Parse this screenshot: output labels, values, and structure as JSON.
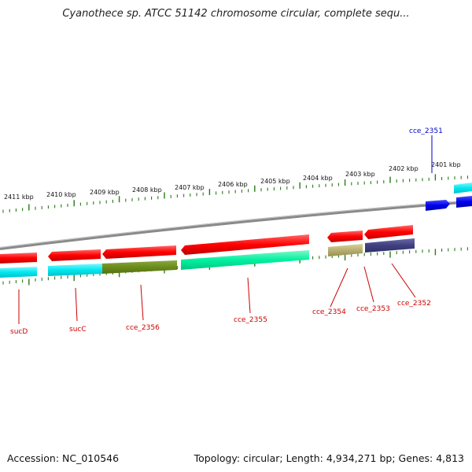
{
  "title": "Cyanothece sp. ATCC 51142 chromosome circular, complete sequ...",
  "footer": {
    "accession": "Accession: NC_010546",
    "summary": "Topology: circular; Length: 4,934,271 bp; Genes: 4,813"
  },
  "colors": {
    "backbone": "#8a8a8a",
    "tick": "#2a7a1a",
    "forward_gene": "#ff0000",
    "reverse_gene": "#0000ee",
    "label_red": "#cc0000",
    "label_blue": "#0000cc",
    "cds_cyan": "#00e8f0",
    "cds_olive": "#6b8c1c",
    "cds_green": "#00f0a0",
    "cds_khaki": "#b8b070",
    "cds_navy": "#404080"
  },
  "scale_labels": [
    "2411 kbp",
    "2410 kbp",
    "2409 kbp",
    "2408 kbp",
    "2407 kbp",
    "2406 kbp",
    "2405 kbp",
    "2404 kbp",
    "2403 kbp",
    "2402 kbp",
    "2401 kbp"
  ],
  "genes": [
    {
      "name": "sucD",
      "strand": "reverse",
      "color": "label_red"
    },
    {
      "name": "sucC",
      "strand": "reverse",
      "color": "label_red"
    },
    {
      "name": "cce_2356",
      "strand": "reverse",
      "color": "label_red"
    },
    {
      "name": "cce_2355",
      "strand": "reverse",
      "color": "label_red"
    },
    {
      "name": "cce_2354",
      "strand": "reverse",
      "color": "label_red"
    },
    {
      "name": "cce_2353",
      "strand": "reverse",
      "color": "label_red"
    },
    {
      "name": "cce_2352",
      "strand": "reverse",
      "color": "label_red"
    },
    {
      "name": "cce_2351",
      "strand": "forward",
      "color": "label_blue"
    }
  ]
}
